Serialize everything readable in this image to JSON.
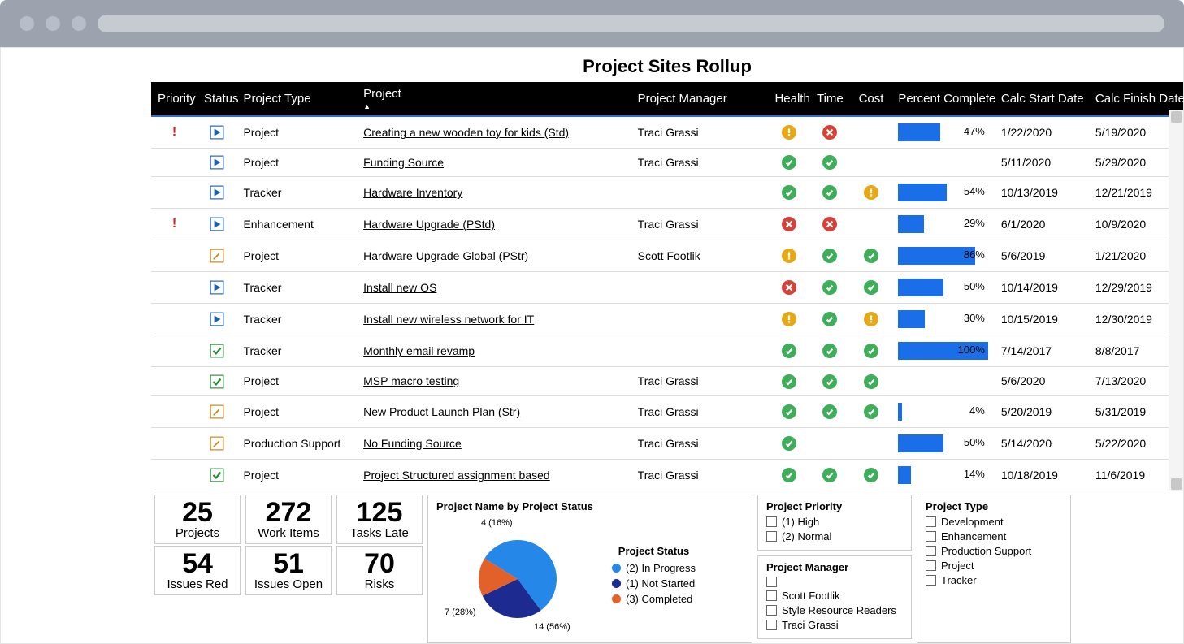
{
  "title": "Project Sites Rollup",
  "colors": {
    "bar": "#1a6fe8",
    "header_bg": "#000",
    "header_underline": "#2b6dd6",
    "warn": "#e6a817",
    "ok": "#3fae5a",
    "err": "#d64238",
    "priority": "#d42020",
    "pie1": "#2588e8",
    "pie2": "#1d2a8f",
    "pie3": "#e2602a"
  },
  "columns": [
    "Priority",
    "Status",
    "Project Type",
    "Project",
    "Project Manager",
    "Health",
    "Time",
    "Cost",
    "Percent Complete",
    "Calc Start Date",
    "Calc Finish Date"
  ],
  "sort_column": "Project",
  "rows": [
    {
      "priority": "!",
      "status": "play",
      "type": "Project",
      "project": "Creating a new wooden toy for kids (Std)",
      "pm": "Traci Grassi",
      "health": "warn",
      "time": "err",
      "cost": "",
      "pct": 47,
      "start": "1/22/2020",
      "finish": "5/19/2020"
    },
    {
      "priority": "",
      "status": "play",
      "type": "Project",
      "project": "Funding Source",
      "pm": "Traci Grassi",
      "health": "ok",
      "time": "ok",
      "cost": "",
      "pct": null,
      "start": "5/11/2020",
      "finish": "5/29/2020"
    },
    {
      "priority": "",
      "status": "play",
      "type": "Tracker",
      "project": "Hardware Inventory",
      "pm": "",
      "health": "ok",
      "time": "ok",
      "cost": "warn",
      "pct": 54,
      "start": "10/13/2019",
      "finish": "12/21/2019"
    },
    {
      "priority": "!",
      "status": "play",
      "type": "Enhancement",
      "project": "Hardware Upgrade (PStd)",
      "pm": "Traci Grassi",
      "health": "err",
      "time": "err",
      "cost": "",
      "pct": 29,
      "start": "6/1/2020",
      "finish": "10/9/2020"
    },
    {
      "priority": "",
      "status": "edit",
      "type": "Project",
      "project": "Hardware Upgrade Global (PStr)",
      "pm": "Scott Footlik",
      "health": "warn",
      "time": "ok",
      "cost": "ok",
      "pct": 86,
      "start": "5/6/2019",
      "finish": "1/21/2020"
    },
    {
      "priority": "",
      "status": "play",
      "type": "Tracker",
      "project": "Install new OS",
      "pm": "",
      "health": "err",
      "time": "ok",
      "cost": "ok",
      "pct": 50,
      "start": "10/14/2019",
      "finish": "12/29/2019"
    },
    {
      "priority": "",
      "status": "play",
      "type": "Tracker",
      "project": "Install new wireless network for IT",
      "pm": "",
      "health": "warn",
      "time": "ok",
      "cost": "warn",
      "pct": 30,
      "start": "10/15/2019",
      "finish": "12/30/2019"
    },
    {
      "priority": "",
      "status": "check",
      "type": "Tracker",
      "project": "Monthly email revamp",
      "pm": "",
      "health": "ok",
      "time": "ok",
      "cost": "ok",
      "pct": 100,
      "start": "7/14/2017",
      "finish": "8/8/2017"
    },
    {
      "priority": "",
      "status": "check",
      "type": "Project",
      "project": "MSP macro testing",
      "pm": "Traci Grassi",
      "health": "ok",
      "time": "ok",
      "cost": "ok",
      "pct": null,
      "start": "5/6/2020",
      "finish": "7/13/2020"
    },
    {
      "priority": "",
      "status": "edit",
      "type": "Project",
      "project": "New Product Launch Plan (Str)",
      "pm": "Traci Grassi",
      "health": "ok",
      "time": "ok",
      "cost": "ok",
      "pct": 4,
      "start": "5/20/2019",
      "finish": "5/31/2019"
    },
    {
      "priority": "",
      "status": "edit",
      "type": "Production Support",
      "project": "No Funding Source",
      "pm": "Traci Grassi",
      "health": "ok",
      "time": "",
      "cost": "",
      "pct": 50,
      "start": "5/14/2020",
      "finish": "5/22/2020"
    },
    {
      "priority": "",
      "status": "check",
      "type": "Project",
      "project": "Project Structured assignment based",
      "pm": "Traci Grassi",
      "health": "ok",
      "time": "ok",
      "cost": "ok",
      "pct": 14,
      "start": "10/18/2019",
      "finish": "11/6/2019"
    }
  ],
  "stats": [
    {
      "value": "25",
      "label": "Projects"
    },
    {
      "value": "54",
      "label": "Issues Red"
    },
    {
      "value": "272",
      "label": "Work Items"
    },
    {
      "value": "51",
      "label": "Issues Open"
    },
    {
      "value": "125",
      "label": "Tasks Late"
    },
    {
      "value": "70",
      "label": "Risks"
    }
  ],
  "pie": {
    "title": "Project Name by Project Status",
    "legend_title": "Project Status",
    "slices": [
      {
        "label": "(2) In Progress",
        "value": 14,
        "pct": 56,
        "color": "#2588e8"
      },
      {
        "label": "(1) Not Started",
        "value": 7,
        "pct": 28,
        "color": "#1d2a8f"
      },
      {
        "label": "(3) Completed",
        "value": 4,
        "pct": 16,
        "color": "#e2602a"
      }
    ],
    "callouts": [
      {
        "text": "4 (16%)"
      },
      {
        "text": "7 (28%)"
      },
      {
        "text": "14 (56%)"
      }
    ]
  },
  "filters": {
    "priority": {
      "title": "Project Priority",
      "items": [
        "(1) High",
        "(2) Normal"
      ]
    },
    "manager": {
      "title": "Project Manager",
      "items": [
        "",
        "Scott Footlik",
        "Style Resource Readers",
        "Traci Grassi"
      ]
    },
    "type": {
      "title": "Project Type",
      "items": [
        "Development",
        "Enhancement",
        "Production Support",
        "Project",
        "Tracker"
      ]
    }
  }
}
